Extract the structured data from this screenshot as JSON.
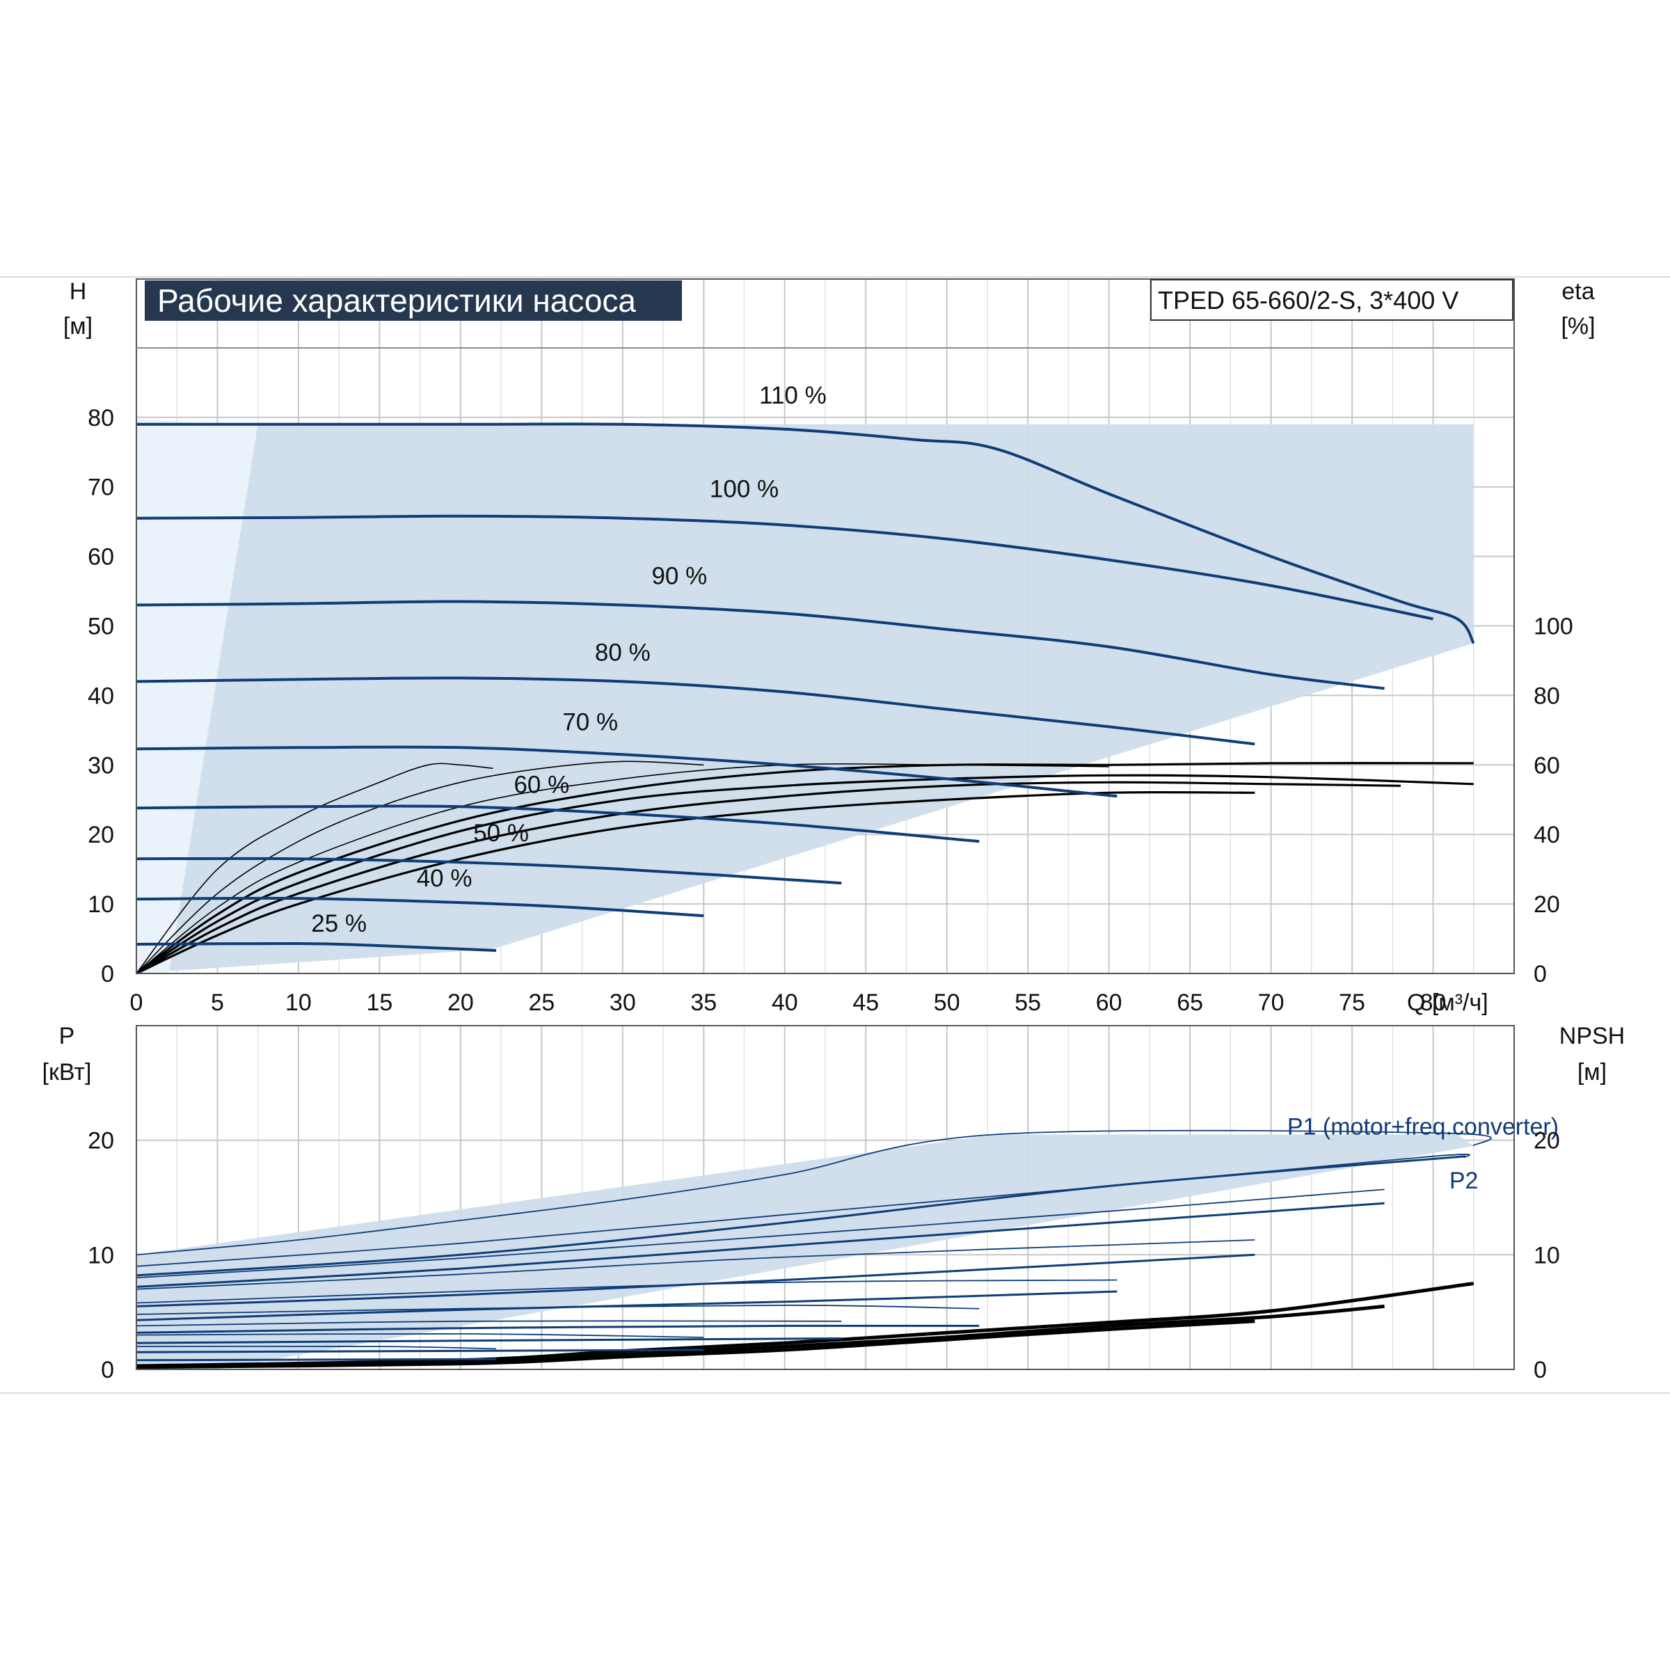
{
  "chart_data": [
    {
      "type": "line",
      "title": "Рабочие характеристики насоса",
      "model_label": "TPED 65-660/2-S, 3*400 V",
      "x_axis": {
        "label": "Q [м³/ч]",
        "range": [
          0,
          85
        ],
        "ticks": [
          "0",
          "5",
          "10",
          "15",
          "20",
          "25",
          "30",
          "35",
          "40",
          "45",
          "50",
          "55",
          "60",
          "65",
          "70",
          "75",
          "80"
        ]
      },
      "y_left": {
        "label_line1": "H",
        "label_line2": "[м]",
        "range": [
          0,
          90
        ],
        "ticks": [
          "0",
          "10",
          "20",
          "30",
          "40",
          "50",
          "60",
          "70",
          "80"
        ]
      },
      "y_right": {
        "label_line1": "eta",
        "label_line2": "[%]",
        "range": [
          0,
          150
        ],
        "ticks": [
          "0",
          "20",
          "40",
          "60",
          "80",
          "100"
        ]
      },
      "grid": true,
      "colors": {
        "head": "#0f3d78",
        "eta": "#000000",
        "envelope": "#cfddec",
        "envelope_light": "#eaf3fb",
        "title_bg": "#26384f"
      },
      "envelope": [
        [
          0,
          0
        ],
        [
          0,
          79
        ],
        [
          82.5,
          79
        ],
        [
          82.5,
          47.5
        ],
        [
          22,
          3.5
        ],
        [
          0,
          0
        ]
      ],
      "head_curves": [
        {
          "label": "110 %",
          "label_at": [
            40.5,
            82
          ],
          "points": [
            [
              0,
              79
            ],
            [
              20,
              79
            ],
            [
              30,
              79
            ],
            [
              40,
              78.3
            ],
            [
              48,
              76.8
            ],
            [
              53,
              75.5
            ],
            [
              60,
              69
            ],
            [
              70,
              60
            ],
            [
              78,
              53.5
            ],
            [
              81.5,
              51
            ],
            [
              82.5,
              47.5
            ]
          ]
        },
        {
          "label": "100 %",
          "label_at": [
            37.5,
            68.5
          ],
          "points": [
            [
              0,
              65.5
            ],
            [
              10,
              65.6
            ],
            [
              20,
              65.8
            ],
            [
              30,
              65.5
            ],
            [
              40,
              64.5
            ],
            [
              50,
              62.5
            ],
            [
              60,
              59.5
            ],
            [
              70,
              55.8
            ],
            [
              80,
              51
            ]
          ]
        },
        {
          "label": "90 %",
          "label_at": [
            33.5,
            56
          ],
          "points": [
            [
              0,
              53
            ],
            [
              10,
              53.2
            ],
            [
              20,
              53.5
            ],
            [
              30,
              53
            ],
            [
              40,
              51.8
            ],
            [
              50,
              49.5
            ],
            [
              60,
              47
            ],
            [
              70,
              43
            ],
            [
              77,
              41
            ]
          ]
        },
        {
          "label": "80 %",
          "label_at": [
            30,
            45
          ],
          "points": [
            [
              0,
              42
            ],
            [
              10,
              42.3
            ],
            [
              20,
              42.5
            ],
            [
              30,
              42
            ],
            [
              40,
              40.5
            ],
            [
              50,
              38
            ],
            [
              60,
              35.5
            ],
            [
              69,
              33
            ]
          ]
        },
        {
          "label": "70 %",
          "label_at": [
            28,
            35
          ],
          "points": [
            [
              0,
              32.3
            ],
            [
              10,
              32.5
            ],
            [
              20,
              32.5
            ],
            [
              30,
              31.5
            ],
            [
              40,
              30
            ],
            [
              50,
              28
            ],
            [
              60.5,
              25.5
            ]
          ]
        },
        {
          "label": "60 %",
          "label_at": [
            25,
            26
          ],
          "points": [
            [
              0,
              23.8
            ],
            [
              10,
              24
            ],
            [
              20,
              24
            ],
            [
              30,
              23
            ],
            [
              40,
              21.5
            ],
            [
              52,
              19
            ]
          ]
        },
        {
          "label": "50 %",
          "label_at": [
            22.5,
            19
          ],
          "points": [
            [
              0,
              16.5
            ],
            [
              10,
              16.5
            ],
            [
              20,
              16
            ],
            [
              30,
              15
            ],
            [
              43.5,
              13
            ]
          ]
        },
        {
          "label": "40 %",
          "label_at": [
            19,
            12.5
          ],
          "points": [
            [
              0,
              10.7
            ],
            [
              10,
              10.8
            ],
            [
              20,
              10.2
            ],
            [
              27,
              9.5
            ],
            [
              35,
              8.3
            ]
          ]
        },
        {
          "label": "25 %",
          "label_at": [
            12.5,
            6
          ],
          "points": [
            [
              0,
              4.2
            ],
            [
              10,
              4.3
            ],
            [
              15,
              4
            ],
            [
              22.2,
              3.3
            ]
          ]
        }
      ],
      "eta_curves": [
        {
          "points": [
            [
              0,
              0
            ],
            [
              5,
              30
            ],
            [
              10,
              45
            ],
            [
              15,
              55
            ],
            [
              18,
              60
            ],
            [
              20,
              60
            ],
            [
              22,
              59
            ]
          ]
        },
        {
          "points": [
            [
              0,
              0
            ],
            [
              5,
              23
            ],
            [
              10,
              38
            ],
            [
              15,
              48
            ],
            [
              20,
              55
            ],
            [
              25,
              59
            ],
            [
              30,
              61
            ],
            [
              35,
              60
            ]
          ]
        },
        {
          "points": [
            [
              0,
              0
            ],
            [
              5,
              19
            ],
            [
              10,
              32
            ],
            [
              20,
              48
            ],
            [
              30,
              56
            ],
            [
              40,
              60
            ],
            [
              50,
              60
            ],
            [
              60,
              59.5
            ]
          ]
        },
        {
          "points": [
            [
              0,
              0
            ],
            [
              5,
              17
            ],
            [
              10,
              29
            ],
            [
              20,
              44
            ],
            [
              30,
              53
            ],
            [
              40,
              58
            ],
            [
              50,
              60
            ],
            [
              60,
              60
            ],
            [
              70,
              60.5
            ],
            [
              82.5,
              60.5
            ]
          ]
        },
        {
          "points": [
            [
              0,
              0
            ],
            [
              5,
              15
            ],
            [
              10,
              26
            ],
            [
              20,
              41
            ],
            [
              30,
              50
            ],
            [
              40,
              54
            ],
            [
              50,
              56
            ],
            [
              60,
              57
            ],
            [
              70,
              56.5
            ],
            [
              82.5,
              54.5
            ]
          ]
        },
        {
          "points": [
            [
              0,
              0
            ],
            [
              5,
              13
            ],
            [
              10,
              23
            ],
            [
              20,
              37
            ],
            [
              30,
              46
            ],
            [
              40,
              51
            ],
            [
              50,
              54
            ],
            [
              60,
              55
            ],
            [
              70,
              54.5
            ],
            [
              78,
              54
            ]
          ]
        },
        {
          "points": [
            [
              0,
              0
            ],
            [
              5,
              11
            ],
            [
              10,
              20
            ],
            [
              20,
              33
            ],
            [
              30,
              42
            ],
            [
              40,
              47
            ],
            [
              50,
              50
            ],
            [
              60,
              52
            ],
            [
              69,
              52
            ]
          ]
        }
      ]
    },
    {
      "type": "line",
      "x_axis": {
        "range": [
          0,
          85
        ]
      },
      "y_left": {
        "label_line1": "P",
        "label_line2": "[кВт]",
        "range": [
          0,
          30
        ],
        "ticks": [
          "0",
          "10",
          "20"
        ]
      },
      "y_right": {
        "label_line1": "NPSH",
        "label_line2": "[м]",
        "range": [
          0,
          30
        ],
        "ticks": [
          "0",
          "10",
          "20"
        ]
      },
      "grid": true,
      "curve_labels": {
        "p1": "P1 (motor+freq.converter)",
        "p2": "P2"
      },
      "p1_label_at": [
        71,
        20.5
      ],
      "p2_label_at": [
        81,
        15.8
      ],
      "envelope": [
        [
          0,
          0
        ],
        [
          0,
          10
        ],
        [
          53,
          20.5
        ],
        [
          81.5,
          20.5
        ],
        [
          82.5,
          19.5
        ],
        [
          5,
          0
        ],
        [
          0,
          0
        ]
      ],
      "p1_curves": [
        {
          "points": [
            [
              0,
              10
            ],
            [
              10,
              11.3
            ],
            [
              20,
              13
            ],
            [
              30,
              14.8
            ],
            [
              40,
              17
            ],
            [
              53,
              20.5
            ],
            [
              81,
              20.6
            ],
            [
              82.5,
              19.5
            ]
          ]
        },
        {
          "points": [
            [
              0,
              9
            ],
            [
              20,
              11
            ],
            [
              40,
              13.5
            ],
            [
              60,
              16
            ],
            [
              80,
              18.6
            ],
            [
              82,
              18.5
            ]
          ]
        },
        {
          "points": [
            [
              0,
              8
            ],
            [
              20,
              9.7
            ],
            [
              40,
              11.7
            ],
            [
              60,
              13.8
            ],
            [
              77,
              15.7
            ]
          ]
        },
        {
          "points": [
            [
              0,
              7
            ],
            [
              20,
              8.3
            ],
            [
              40,
              9.8
            ],
            [
              69,
              11.3
            ]
          ]
        },
        {
          "points": [
            [
              0,
              5.8
            ],
            [
              20,
              6.8
            ],
            [
              40,
              7.6
            ],
            [
              60.5,
              7.8
            ]
          ]
        },
        {
          "points": [
            [
              0,
              4.8
            ],
            [
              20,
              5.3
            ],
            [
              40,
              5.6
            ],
            [
              52,
              5.3
            ]
          ]
        },
        {
          "points": [
            [
              0,
              3.8
            ],
            [
              20,
              4.2
            ],
            [
              43.5,
              4.2
            ]
          ]
        },
        {
          "points": [
            [
              0,
              3
            ],
            [
              20,
              3.1
            ],
            [
              35,
              2.8
            ]
          ]
        },
        {
          "points": [
            [
              0,
              2
            ],
            [
              15,
              2
            ],
            [
              22.2,
              1.8
            ]
          ]
        }
      ],
      "p2_curves": [
        {
          "points": [
            [
              0,
              8.2
            ],
            [
              20,
              10
            ],
            [
              40,
              12.8
            ],
            [
              60,
              16
            ],
            [
              82,
              18.6
            ]
          ]
        },
        {
          "points": [
            [
              0,
              7.2
            ],
            [
              20,
              8.8
            ],
            [
              40,
              10.8
            ],
            [
              60,
              12.8
            ],
            [
              77,
              14.5
            ]
          ]
        },
        {
          "points": [
            [
              0,
              5.5
            ],
            [
              20,
              6.5
            ],
            [
              40,
              7.8
            ],
            [
              69,
              10
            ]
          ]
        },
        {
          "points": [
            [
              0,
              4.3
            ],
            [
              20,
              5.2
            ],
            [
              40,
              5.9
            ],
            [
              60.5,
              6.8
            ]
          ]
        },
        {
          "points": [
            [
              0,
              3.2
            ],
            [
              20,
              3.6
            ],
            [
              40,
              3.8
            ],
            [
              52,
              3.8
            ]
          ]
        },
        {
          "points": [
            [
              0,
              2.3
            ],
            [
              20,
              2.5
            ],
            [
              43.5,
              2.7
            ]
          ]
        },
        {
          "points": [
            [
              0,
              1.5
            ],
            [
              35,
              1.7
            ]
          ]
        },
        {
          "points": [
            [
              0,
              0.8
            ],
            [
              22.2,
              0.9
            ]
          ]
        }
      ],
      "npsh_curves": [
        {
          "points": [
            [
              0,
              0.3
            ],
            [
              20,
              0.8
            ],
            [
              30,
              1.6
            ],
            [
              40,
              2.3
            ],
            [
              50,
              3.2
            ],
            [
              60,
              4.1
            ],
            [
              70,
              5.1
            ],
            [
              82.5,
              7.5
            ]
          ]
        },
        {
          "points": [
            [
              0,
              0.3
            ],
            [
              20,
              0.6
            ],
            [
              30,
              1.3
            ],
            [
              40,
              2
            ],
            [
              50,
              2.8
            ],
            [
              60,
              3.8
            ],
            [
              70,
              4.6
            ],
            [
              77,
              5.5
            ]
          ]
        },
        {
          "points": [
            [
              0,
              0.2
            ],
            [
              20,
              0.5
            ],
            [
              30,
              1.1
            ],
            [
              40,
              1.7
            ],
            [
              50,
              2.6
            ],
            [
              60,
              3.5
            ],
            [
              69,
              4.2
            ]
          ]
        }
      ]
    }
  ]
}
